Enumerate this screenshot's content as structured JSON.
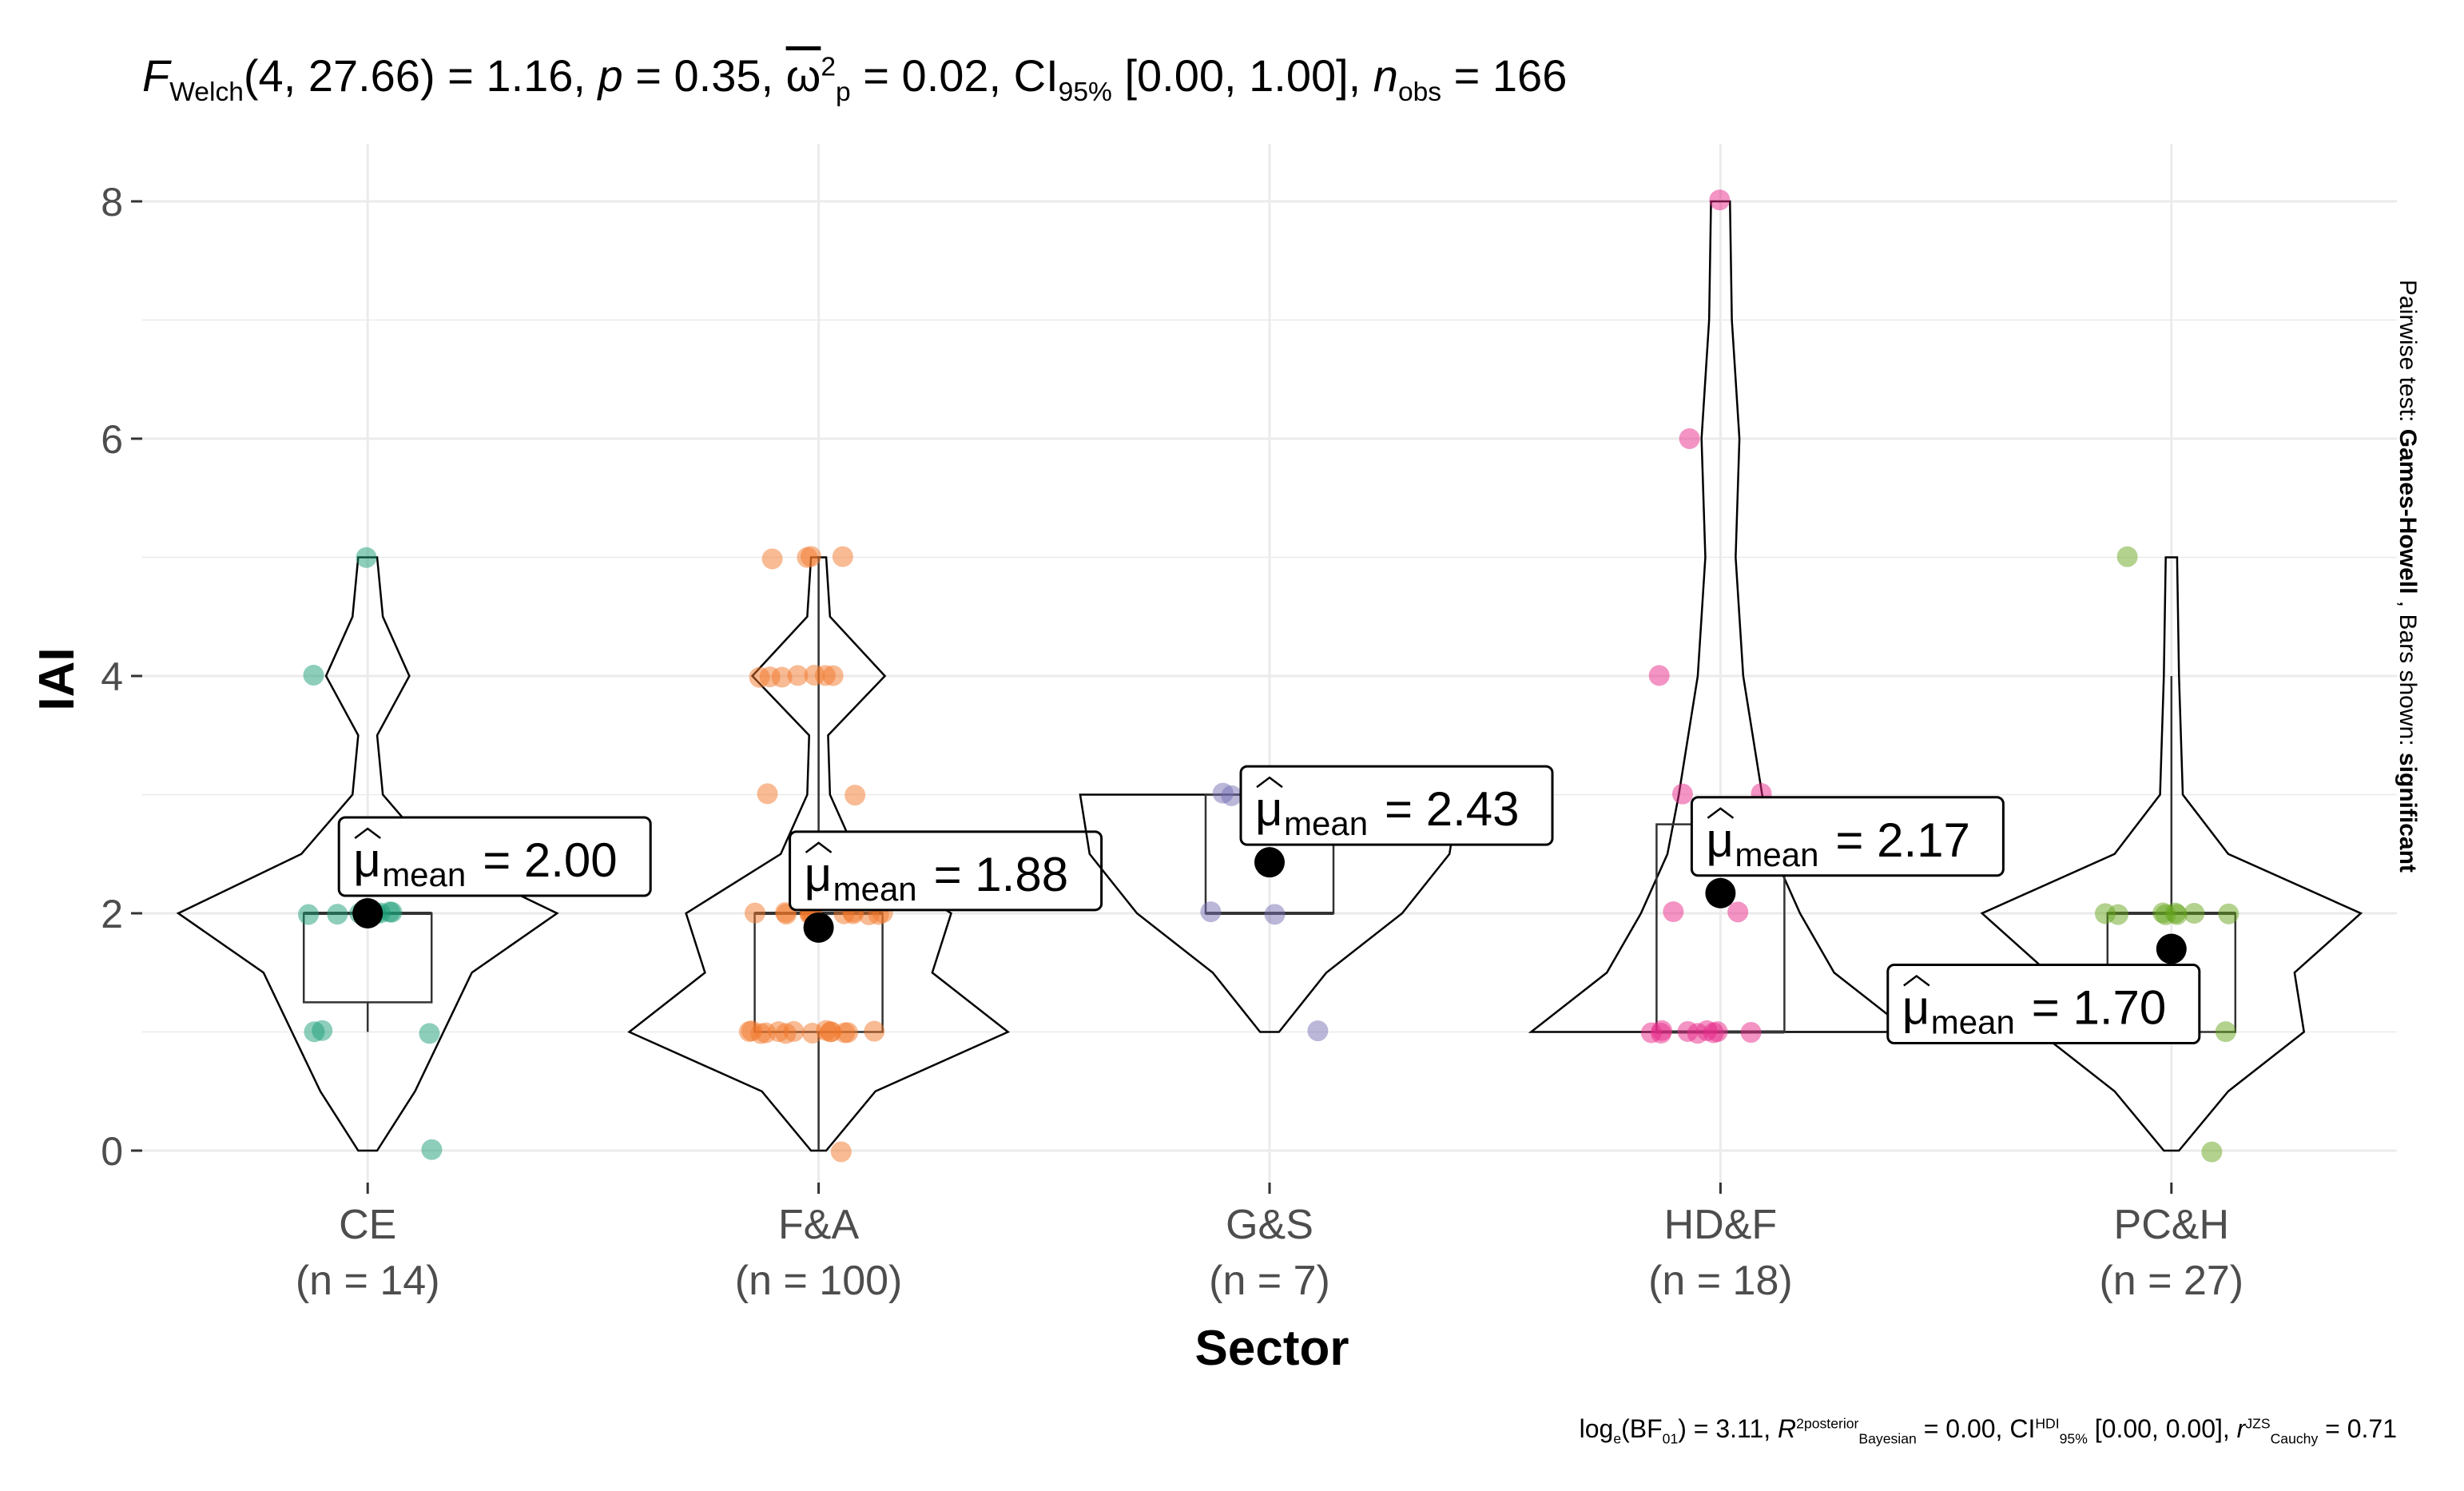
{
  "header": {
    "test_symbol": "F",
    "test_sub": "Welch",
    "df_text": "(4, 27.66) = 1.16, ",
    "p_symbol": "p",
    "p_text": " = 0.35, ",
    "effect_symbol": "ω",
    "effect_sup": "2",
    "effect_sub": "p",
    "effect_text": " = 0.02, CI",
    "ci_sub": "95%",
    "ci_text": " [0.00, 1.00], ",
    "n_symbol": "n",
    "n_sub": "obs",
    "n_text": " = 166"
  },
  "sidebar": {
    "prefix": "Pairwise test: ",
    "method": "Games-Howell",
    "middle": " , Bars shown: ",
    "shown": "significant"
  },
  "footer": {
    "text1": "log",
    "sub1": "e",
    "text2": "(BF",
    "sub2": "01",
    "text3": ") = 3.11, ",
    "r_symbol": "R",
    "r_sup": "2posterior",
    "r_sub": "Bayesian",
    "text4": " = 0.00, CI",
    "ci_sup": "HDI",
    "ci_sub": "95%",
    "text5": " [0.00, 0.00], ",
    "r2_symbol": "r",
    "r2_sup": "JZS",
    "r2_sub": "Cauchy",
    "text6": " = 0.71"
  },
  "chart_data": {
    "type": "violin-box-scatter",
    "xlabel": "Sector",
    "ylabel": "IAI",
    "ylim": [
      -0.5,
      8.4
    ],
    "yticks": [
      0,
      2,
      4,
      6,
      8
    ],
    "grid": true,
    "mean_label_prefix": "μ",
    "mean_label_sub": "mean",
    "groups": [
      {
        "name": "CE",
        "n_label": "(n = 14)",
        "color": "#1B9E77",
        "mean": 2.0,
        "mean_label": "2.00",
        "box": {
          "q1": 1.25,
          "median": 2,
          "q3": 2,
          "whisker_low": 1,
          "whisker_high": 2
        },
        "points": [
          5,
          4,
          2,
          2,
          2,
          2,
          2,
          2,
          2,
          2,
          1,
          1,
          1,
          0
        ],
        "violin": [
          [
            0,
            0.05
          ],
          [
            0.5,
            0.25
          ],
          [
            1,
            0.4
          ],
          [
            1.5,
            0.55
          ],
          [
            2,
            1.0
          ],
          [
            2.5,
            0.35
          ],
          [
            3,
            0.08
          ],
          [
            3.5,
            0.05
          ],
          [
            4,
            0.22
          ],
          [
            4.5,
            0.08
          ],
          [
            5,
            0.05
          ]
        ]
      },
      {
        "name": "F&A",
        "n_label": "(n = 100)",
        "color": "#F2772A",
        "mean": 1.88,
        "mean_label": "1.88",
        "box": {
          "q1": 1,
          "median": 2,
          "q3": 2,
          "whisker_low": 0,
          "whisker_high": 5
        },
        "points": [
          5,
          5,
          5,
          5,
          4,
          4,
          4,
          4,
          4,
          4,
          4,
          3,
          3,
          2,
          2,
          2,
          2,
          2,
          2,
          2,
          2,
          2,
          2,
          2,
          2,
          2,
          1,
          1,
          1,
          1,
          1,
          1,
          1,
          1,
          1,
          1,
          1,
          1,
          1,
          1,
          0
        ],
        "violin": [
          [
            0,
            0.04
          ],
          [
            0.5,
            0.3
          ],
          [
            1,
            1.0
          ],
          [
            1.5,
            0.6
          ],
          [
            2,
            0.7
          ],
          [
            2.5,
            0.2
          ],
          [
            3,
            0.06
          ],
          [
            3.5,
            0.05
          ],
          [
            4,
            0.35
          ],
          [
            4.5,
            0.06
          ],
          [
            5,
            0.04
          ]
        ]
      },
      {
        "name": "G&S",
        "n_label": "(n = 7)",
        "color": "#7570B3",
        "mean": 2.43,
        "mean_label": "2.43",
        "box": {
          "q1": 2,
          "median": 2,
          "q3": 3,
          "whisker_low": 2,
          "whisker_high": 3
        },
        "points": [
          3,
          3,
          2,
          2,
          1
        ],
        "violin": [
          [
            1,
            0.05
          ],
          [
            1.5,
            0.3
          ],
          [
            2,
            0.7
          ],
          [
            2.5,
            0.95
          ],
          [
            3,
            1.0
          ]
        ]
      },
      {
        "name": "HD&F",
        "n_label": "(n = 18)",
        "color": "#E7298A",
        "mean": 2.17,
        "mean_label": "2.17",
        "box": {
          "q1": 1,
          "median": 1,
          "q3": 2.75,
          "whisker_low": 1,
          "whisker_high": 2.75
        },
        "points": [
          8,
          6,
          4,
          3,
          3,
          2,
          2,
          1,
          1,
          1,
          1,
          1,
          1,
          1,
          1,
          1
        ],
        "violin": [
          [
            1,
            1.0
          ],
          [
            1.5,
            0.6
          ],
          [
            2,
            0.42
          ],
          [
            2.5,
            0.28
          ],
          [
            3,
            0.22
          ],
          [
            4,
            0.12
          ],
          [
            5,
            0.08
          ],
          [
            6,
            0.1
          ],
          [
            7,
            0.06
          ],
          [
            8,
            0.05
          ]
        ]
      },
      {
        "name": "PC&H",
        "n_label": "(n = 27)",
        "color": "#66A61E",
        "mean": 1.7,
        "mean_label": "1.70",
        "box": {
          "q1": 1,
          "median": 2,
          "q3": 2,
          "whisker_low": 1,
          "whisker_high": 4
        },
        "points": [
          5,
          2,
          2,
          2,
          2,
          2,
          2,
          2,
          2,
          1,
          1,
          0
        ],
        "violin": [
          [
            0,
            0.04
          ],
          [
            0.5,
            0.3
          ],
          [
            1,
            0.7
          ],
          [
            1.5,
            0.65
          ],
          [
            2,
            1.0
          ],
          [
            2.5,
            0.3
          ],
          [
            3,
            0.06
          ],
          [
            4,
            0.04
          ],
          [
            5,
            0.03
          ]
        ]
      }
    ]
  }
}
